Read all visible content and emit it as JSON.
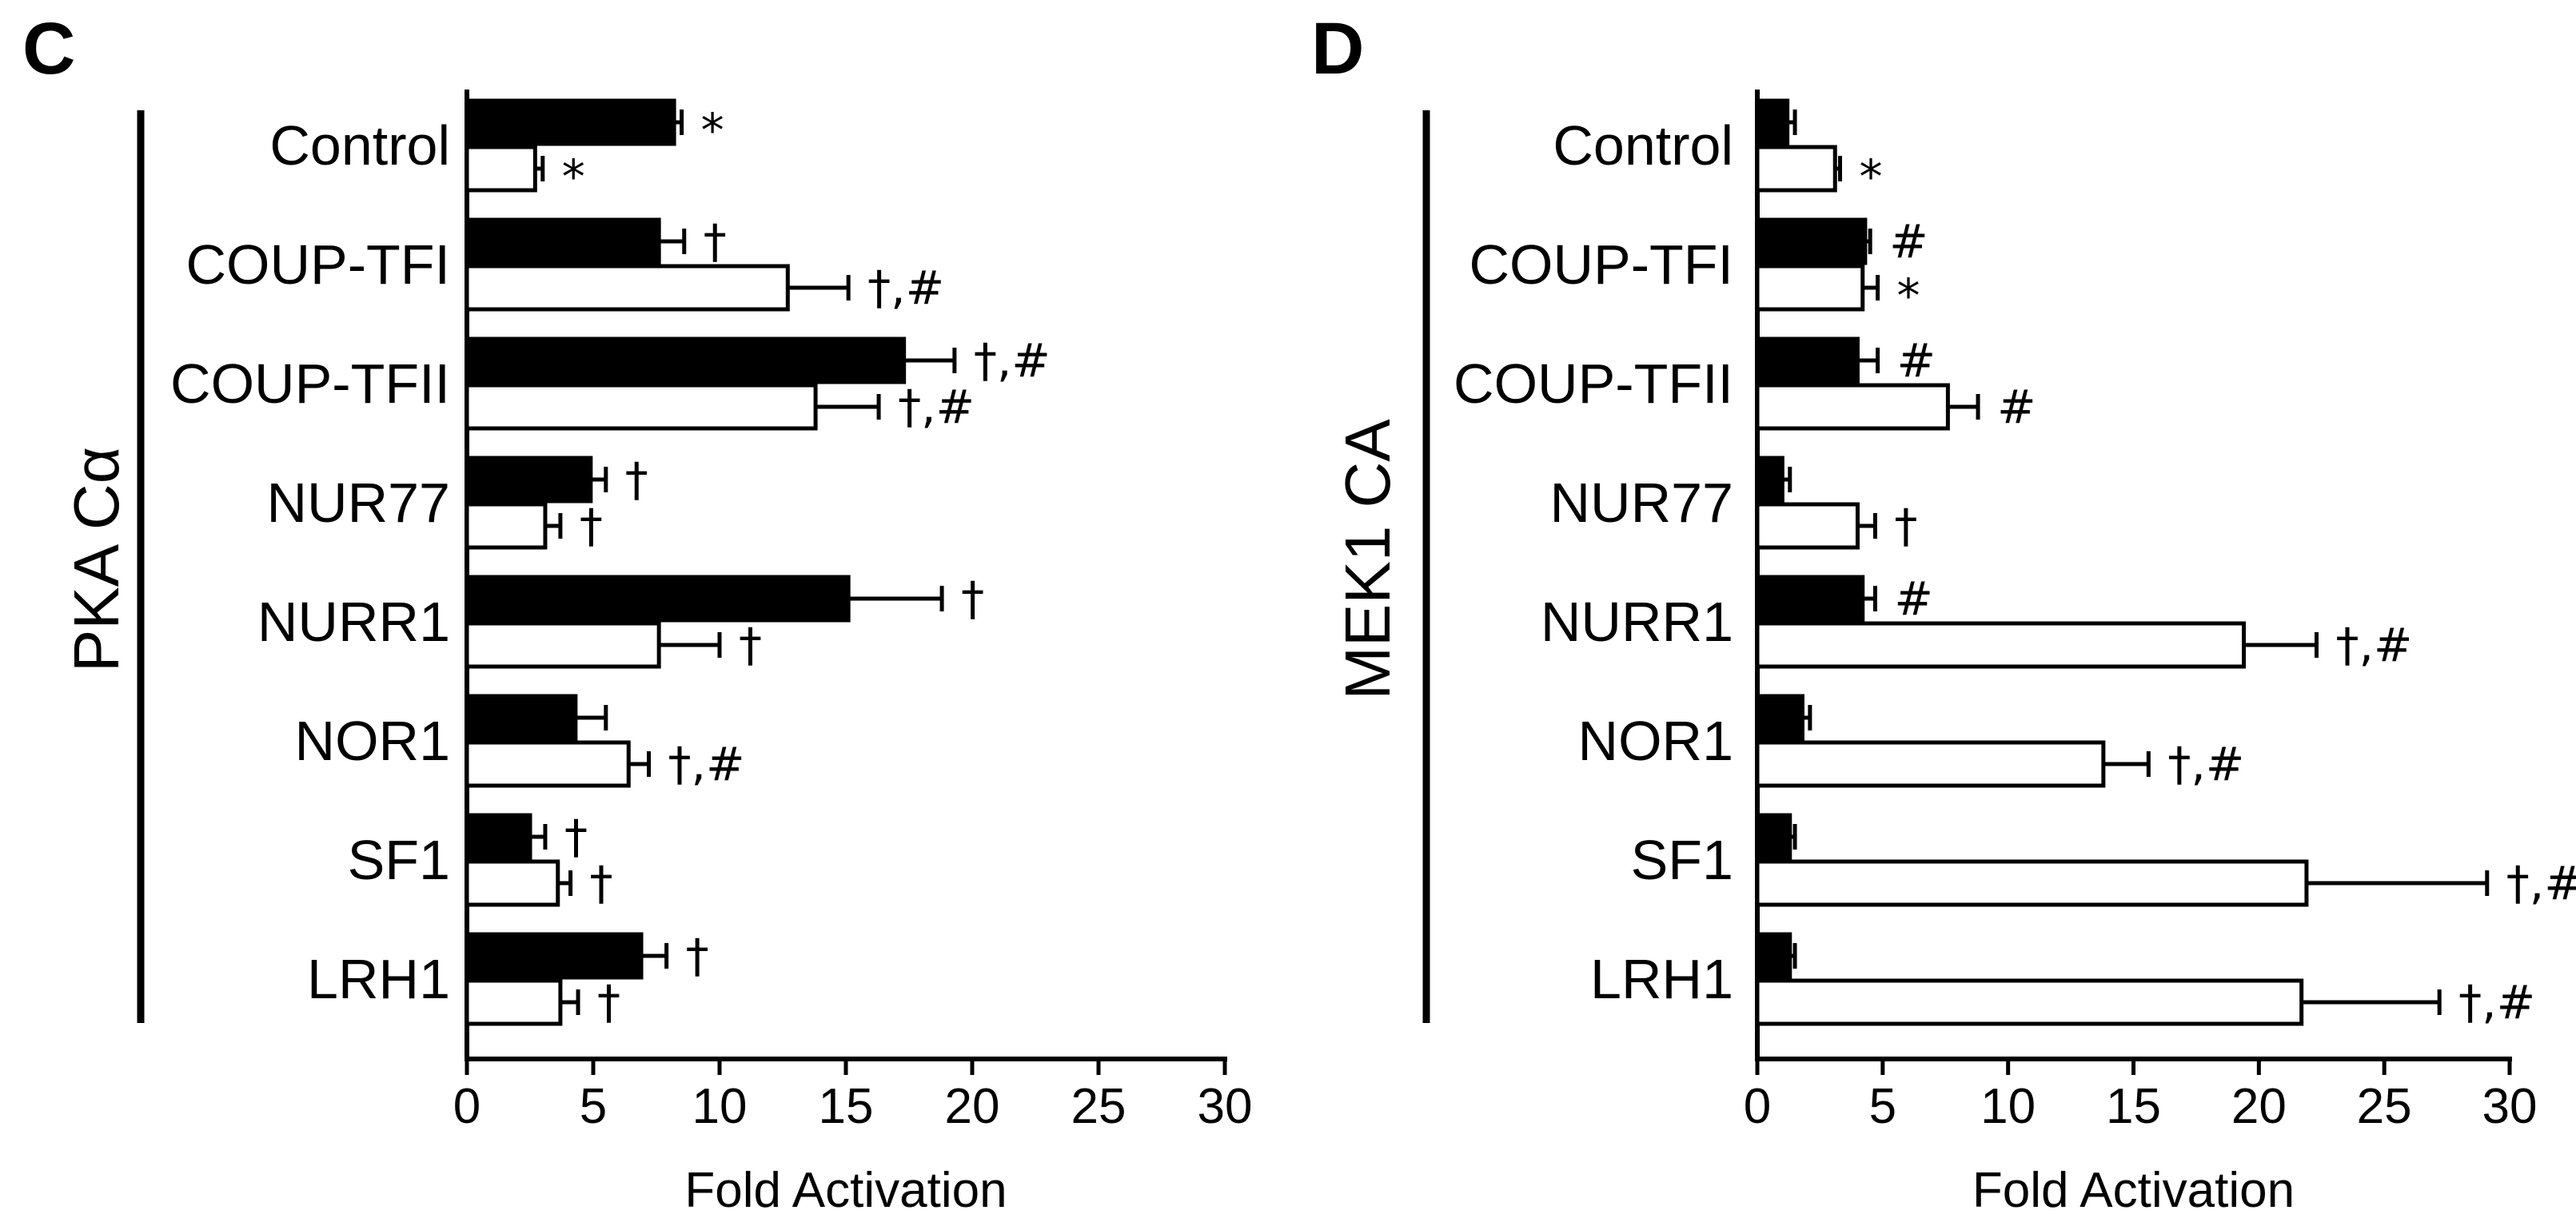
{
  "chart_data": [
    {
      "type": "bar",
      "orientation": "horizontal",
      "panel": "C",
      "group_label": "PKA Cα",
      "xlabel": "Fold Activation",
      "xlim": [
        0,
        30
      ],
      "xticks": [
        0,
        5,
        10,
        15,
        20,
        25,
        30
      ],
      "categories": [
        "Control",
        "COUP-TFI",
        "COUP-TFII",
        "NUR77",
        "NURR1",
        "NOR1",
        "SF1",
        "LRH1"
      ],
      "series": [
        {
          "name": "filled",
          "color": "#000000",
          "values": [
            8.2,
            7.6,
            17.3,
            4.9,
            15.1,
            4.3,
            2.5,
            6.9
          ],
          "errors": [
            0.3,
            1.0,
            2.0,
            0.6,
            3.7,
            1.2,
            0.6,
            1.0
          ],
          "significance": [
            "*",
            "†",
            "†,#",
            "†",
            "†",
            "",
            "†",
            "†"
          ]
        },
        {
          "name": "open",
          "color": "#ffffff",
          "values": [
            2.7,
            12.7,
            13.8,
            3.1,
            7.6,
            6.4,
            3.6,
            3.7
          ],
          "errors": [
            0.3,
            2.4,
            2.5,
            0.6,
            2.4,
            0.8,
            0.5,
            0.7
          ],
          "significance": [
            "*",
            "†,#",
            "†,#",
            "†",
            "†",
            "†,#",
            "†",
            "†"
          ]
        }
      ]
    },
    {
      "type": "bar",
      "orientation": "horizontal",
      "panel": "D",
      "group_label": "MEK1 CA",
      "xlabel": "Fold Activation",
      "xlim": [
        0,
        30
      ],
      "xticks": [
        0,
        5,
        10,
        15,
        20,
        25,
        30
      ],
      "categories": [
        "Control",
        "COUP-TFI",
        "COUP-TFII",
        "NUR77",
        "NURR1",
        "NOR1",
        "SF1",
        "LRH1"
      ],
      "series": [
        {
          "name": "filled",
          "color": "#000000",
          "values": [
            1.2,
            4.3,
            4.0,
            1.0,
            4.2,
            1.8,
            1.3,
            1.3
          ],
          "errors": [
            0.3,
            0.2,
            0.8,
            0.3,
            0.5,
            0.3,
            0.2,
            0.2
          ],
          "significance": [
            "",
            "#",
            "#",
            "",
            "#",
            "",
            "",
            ""
          ]
        },
        {
          "name": "open",
          "color": "#ffffff",
          "values": [
            3.1,
            4.2,
            7.6,
            4.0,
            19.4,
            13.8,
            21.9,
            21.7
          ],
          "errors": [
            0.2,
            0.6,
            1.2,
            0.7,
            2.9,
            1.8,
            7.2,
            5.5
          ],
          "significance": [
            "*",
            "*",
            "#",
            "†",
            "†,#",
            "†,#",
            "†,#",
            "†,#"
          ]
        }
      ]
    }
  ]
}
